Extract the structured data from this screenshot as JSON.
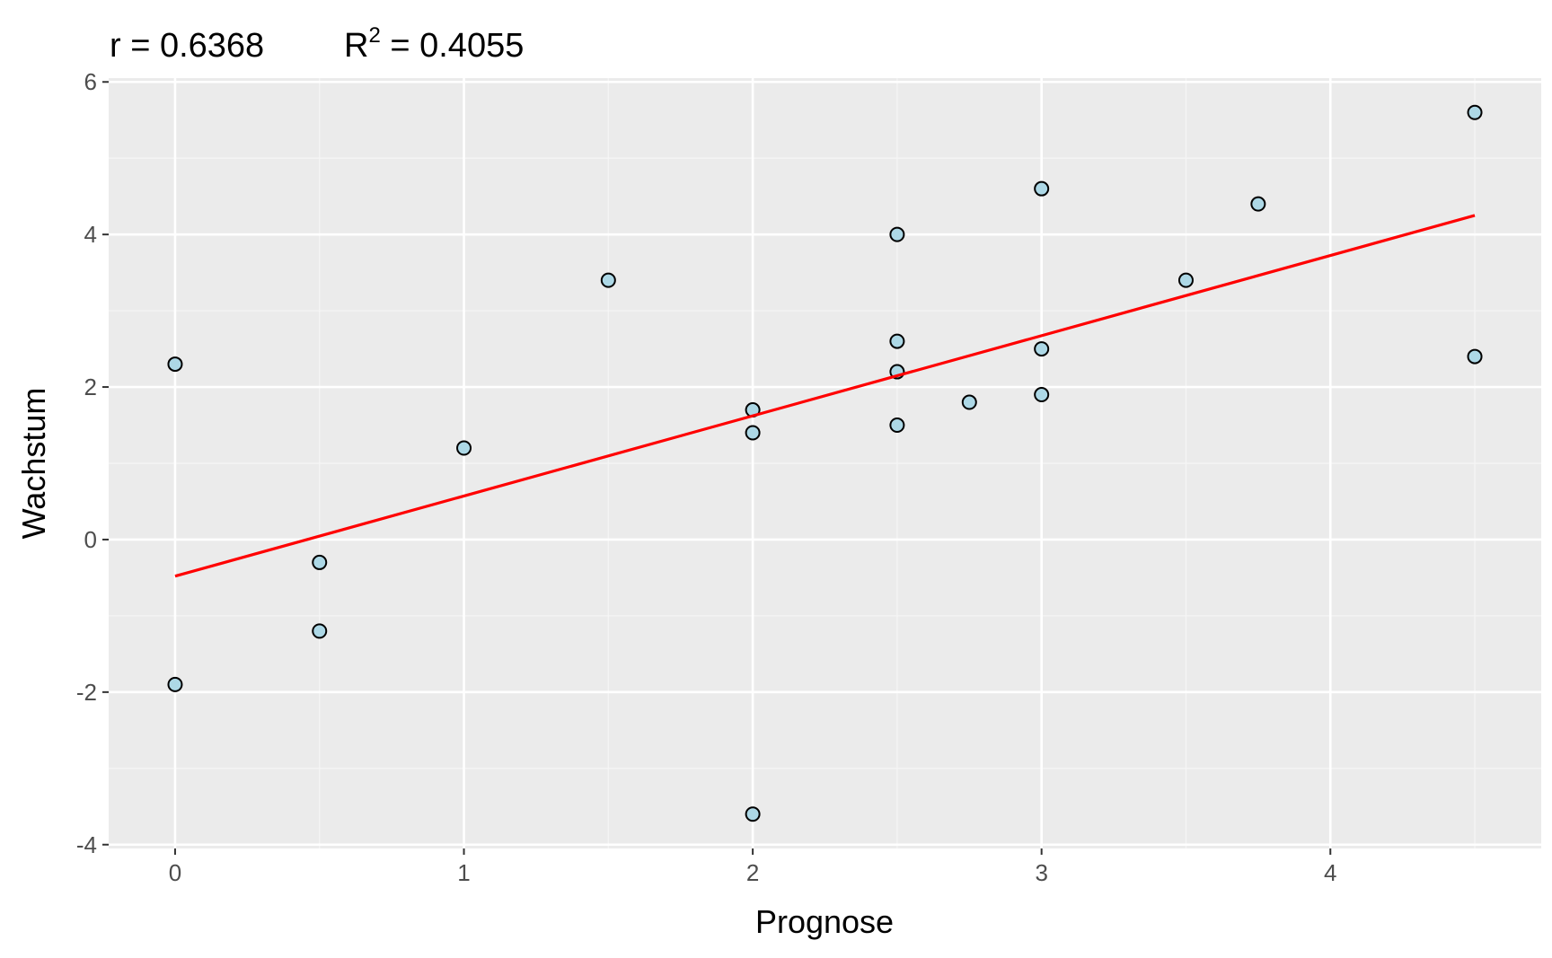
{
  "chart_data": {
    "type": "scatter",
    "title": {
      "r_label": "r = 0.6368",
      "r2_prefix": "R",
      "r2_exponent": "2",
      "r2_value": " = 0.4055"
    },
    "xlabel": "Prognose",
    "ylabel": "Wachstum",
    "xlim": [
      -0.23,
      4.73
    ],
    "ylim": [
      -4.05,
      6.05
    ],
    "x_ticks": [
      0,
      1,
      2,
      3,
      4
    ],
    "x_tick_labels": [
      "0",
      "1",
      "2",
      "3",
      "4"
    ],
    "y_ticks": [
      -4,
      -2,
      0,
      2,
      4,
      6
    ],
    "y_tick_labels": [
      "-4",
      "-2",
      "0",
      "2",
      "4",
      "6"
    ],
    "x_minor": [
      0.5,
      1.5,
      2.5,
      3.5,
      4.5
    ],
    "y_minor": [
      -3,
      -1,
      1,
      3,
      5
    ],
    "grid": true,
    "legend": "none",
    "series": [
      {
        "points": [
          [
            0,
            2.3
          ],
          [
            0,
            -1.9
          ],
          [
            0.5,
            -0.3
          ],
          [
            0.5,
            -1.2
          ],
          [
            1,
            1.2
          ],
          [
            1.5,
            3.4
          ],
          [
            2,
            1.7
          ],
          [
            2,
            1.4
          ],
          [
            2,
            -3.6
          ],
          [
            2.5,
            4.0
          ],
          [
            2.5,
            2.6
          ],
          [
            2.5,
            2.2
          ],
          [
            2.5,
            1.5
          ],
          [
            2.75,
            1.8
          ],
          [
            3,
            4.6
          ],
          [
            3,
            2.5
          ],
          [
            3,
            1.9
          ],
          [
            3.5,
            3.4
          ],
          [
            3.75,
            4.4
          ],
          [
            4.5,
            5.6
          ],
          [
            4.5,
            2.4
          ]
        ]
      }
    ],
    "regression_line": {
      "x": [
        0,
        4.5
      ],
      "y": [
        -0.48,
        4.25
      ]
    },
    "colors": {
      "panel_background": "#ebebeb",
      "grid_major": "#ffffff",
      "grid_minor": "#f5f5f5",
      "point_fill": "#add8e6",
      "point_stroke": "#000000",
      "line": "#ff0000",
      "tick": "#333333"
    }
  }
}
